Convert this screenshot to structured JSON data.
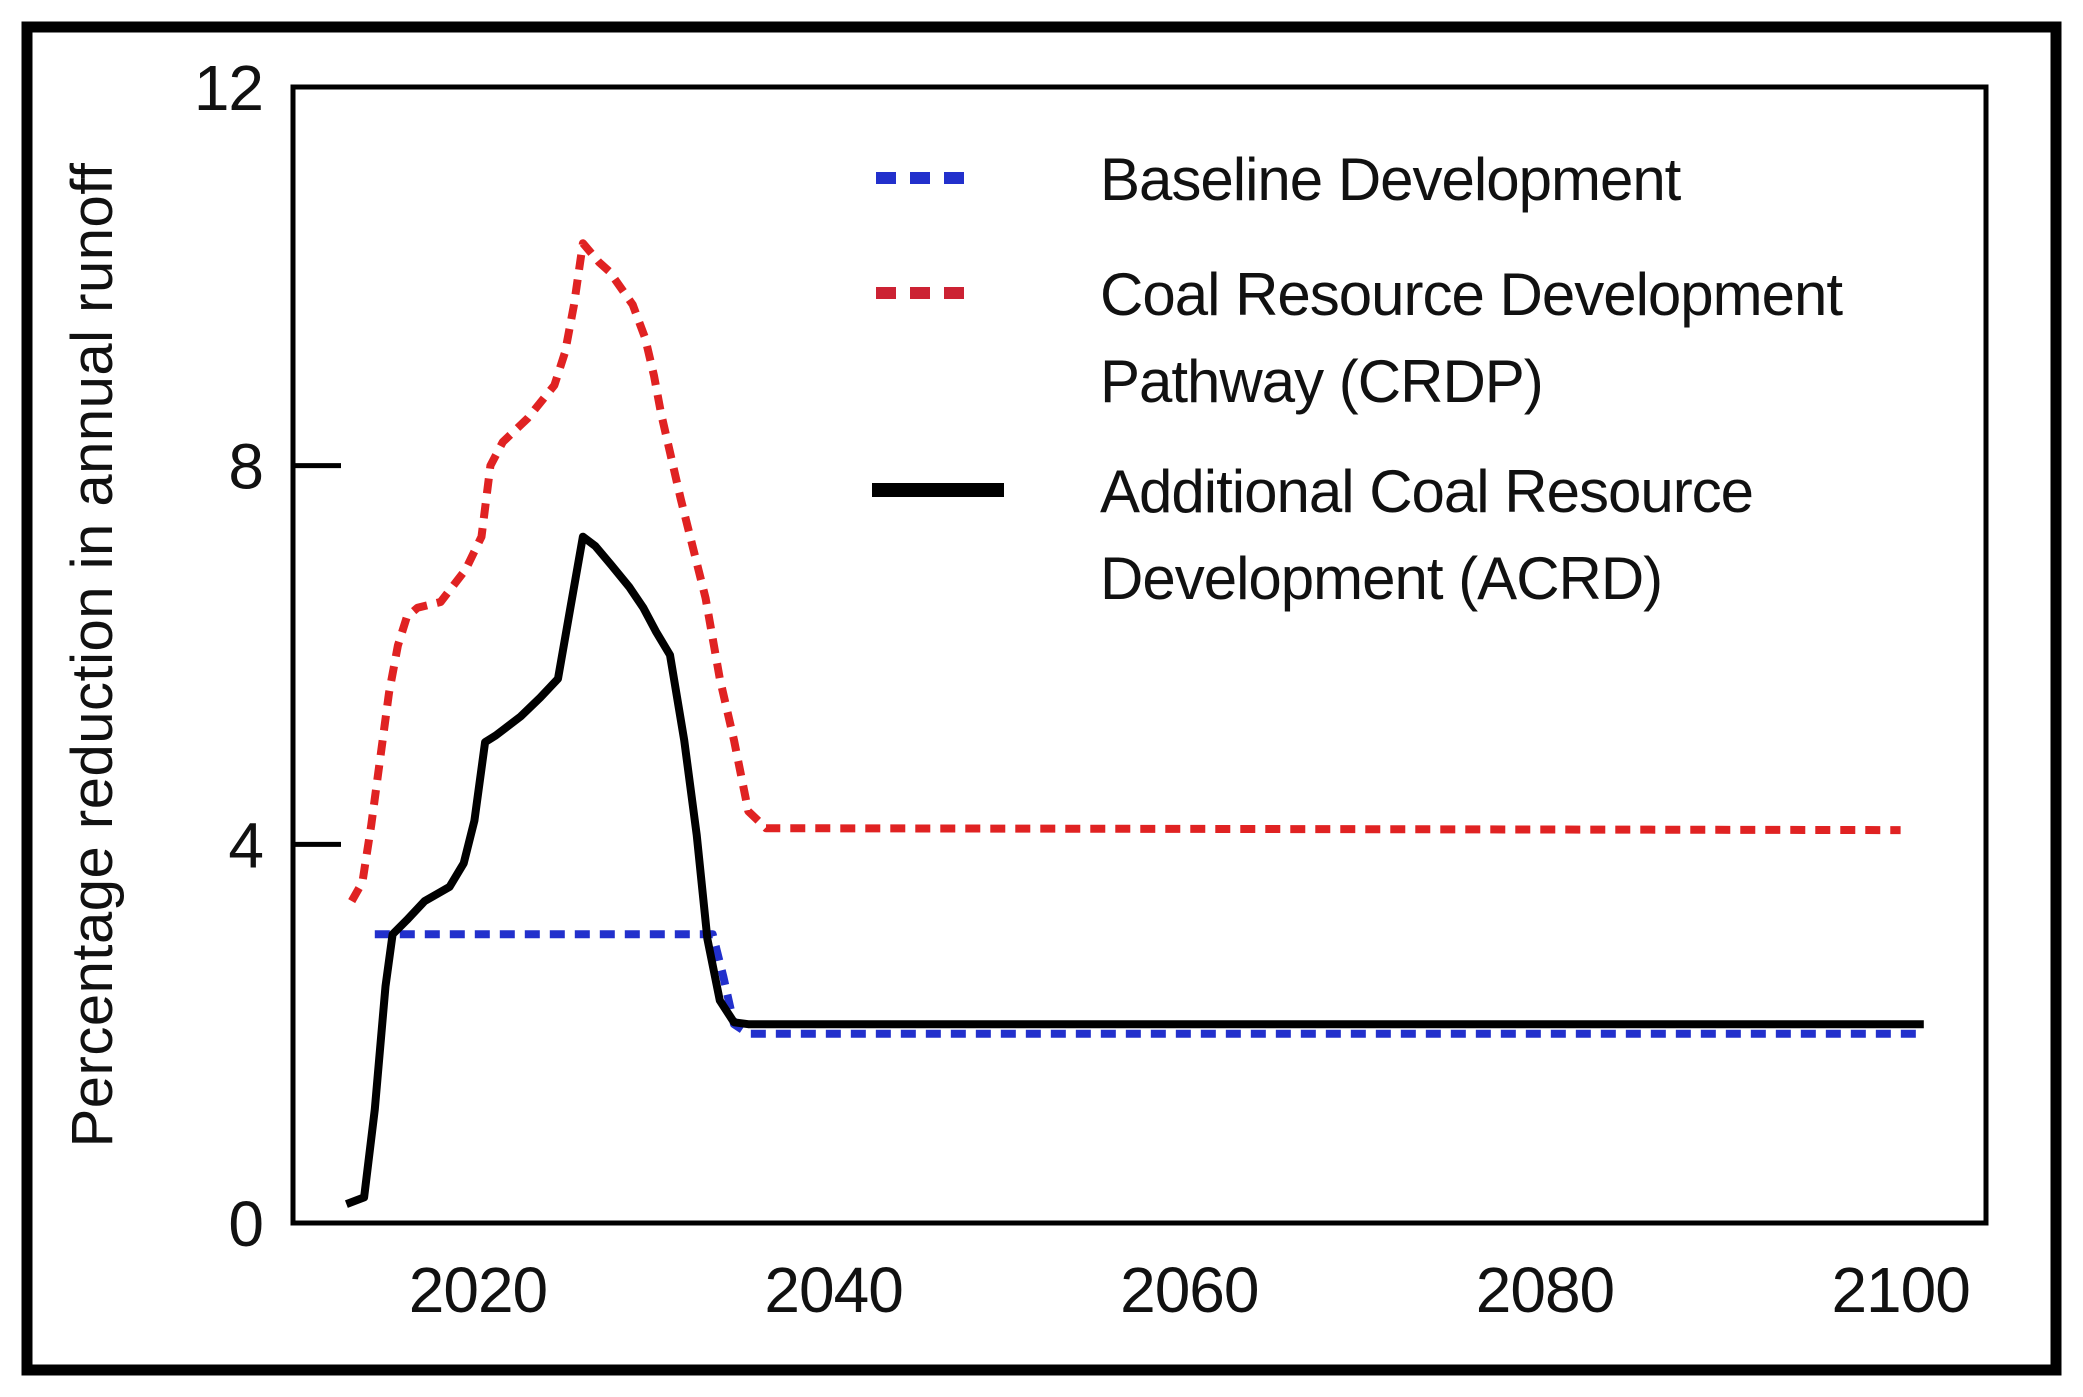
{
  "figure": {
    "background": "#ffffff",
    "border_color": "#000000",
    "axis_color": "#000000"
  },
  "chart_data": {
    "type": "line",
    "title": "",
    "xlabel": "",
    "ylabel": "Percentage reduction in annual runoff",
    "x_ticks": [
      "2020",
      "2040",
      "2060",
      "2080",
      "2100"
    ],
    "x_tick_years": [
      2020,
      2040,
      2060,
      2080,
      2100
    ],
    "y_ticks": [
      "0",
      "4",
      "8",
      "12"
    ],
    "y_tick_values": [
      0,
      4,
      8,
      12
    ],
    "xlim": [
      2009.6,
      2104.8
    ],
    "ylim": [
      0,
      12
    ],
    "grid": false,
    "legend_position": "inside-top-right",
    "series": [
      {
        "name": "Baseline Development",
        "color": "#2230cc",
        "style": "dashed",
        "points": [
          [
            2014.2,
            3.05
          ],
          [
            2033.2,
            3.05
          ],
          [
            2033.8,
            2.6
          ],
          [
            2034.4,
            2.1
          ],
          [
            2035.2,
            2.0
          ],
          [
            2101.3,
            2.0
          ]
        ]
      },
      {
        "name": "Coal Resource Development Pathway (CRDP)",
        "color": "#e02222",
        "style": "dashed",
        "points": [
          [
            2012.9,
            3.4
          ],
          [
            2013.5,
            3.6
          ],
          [
            2014.0,
            4.2
          ],
          [
            2014.5,
            4.9
          ],
          [
            2015.0,
            5.6
          ],
          [
            2015.5,
            6.1
          ],
          [
            2016.0,
            6.4
          ],
          [
            2016.6,
            6.5
          ],
          [
            2017.9,
            6.56
          ],
          [
            2019.3,
            6.9
          ],
          [
            2020.2,
            7.25
          ],
          [
            2020.7,
            8.0
          ],
          [
            2021.4,
            8.25
          ],
          [
            2022.8,
            8.5
          ],
          [
            2024.3,
            8.85
          ],
          [
            2024.9,
            9.2
          ],
          [
            2025.4,
            9.7
          ],
          [
            2025.9,
            10.35
          ],
          [
            2026.8,
            10.15
          ],
          [
            2027.4,
            10.05
          ],
          [
            2028.7,
            9.7
          ],
          [
            2029.4,
            9.35
          ],
          [
            2029.9,
            8.95
          ],
          [
            2030.3,
            8.55
          ],
          [
            2031.4,
            7.65
          ],
          [
            2032.8,
            6.6
          ],
          [
            2033.6,
            5.75
          ],
          [
            2034.4,
            5.1
          ],
          [
            2035.2,
            4.35
          ],
          [
            2036.2,
            4.17
          ],
          [
            2100.0,
            4.15
          ]
        ]
      },
      {
        "name": "Additional Coal Resource Development (ACRD)",
        "color": "#000000",
        "style": "solid",
        "points": [
          [
            2012.6,
            0.2
          ],
          [
            2013.6,
            0.27
          ],
          [
            2014.2,
            1.2
          ],
          [
            2014.8,
            2.5
          ],
          [
            2015.2,
            3.05
          ],
          [
            2016.0,
            3.2
          ],
          [
            2017.0,
            3.4
          ],
          [
            2018.4,
            3.55
          ],
          [
            2019.2,
            3.8
          ],
          [
            2019.8,
            4.25
          ],
          [
            2020.4,
            5.08
          ],
          [
            2021.0,
            5.15
          ],
          [
            2022.4,
            5.35
          ],
          [
            2023.5,
            5.55
          ],
          [
            2024.5,
            5.75
          ],
          [
            2025.2,
            6.5
          ],
          [
            2025.9,
            7.25
          ],
          [
            2026.6,
            7.15
          ],
          [
            2027.5,
            6.95
          ],
          [
            2028.5,
            6.72
          ],
          [
            2029.3,
            6.5
          ],
          [
            2030.0,
            6.25
          ],
          [
            2030.8,
            6.0
          ],
          [
            2031.6,
            5.1
          ],
          [
            2032.3,
            4.1
          ],
          [
            2032.9,
            3.0
          ],
          [
            2033.6,
            2.35
          ],
          [
            2034.4,
            2.12
          ],
          [
            2035.2,
            2.1
          ],
          [
            2101.3,
            2.1
          ]
        ]
      }
    ],
    "legend": {
      "items": [
        {
          "series": "Baseline Development",
          "label_lines": [
            "Baseline Development"
          ],
          "marker_style": "dashed",
          "marker_color": "#2230cc"
        },
        {
          "series": "Coal Resource Development Pathway (CRDP)",
          "label_lines": [
            "Coal Resource Development",
            "Pathway (CRDP)"
          ],
          "marker_style": "dashed",
          "marker_color": "#cc2233"
        },
        {
          "series": "Additional Coal Resource Development (ACRD)",
          "label_lines": [
            "Additional Coal Resource",
            "Development (ACRD)"
          ],
          "marker_style": "solid",
          "marker_color": "#000000"
        }
      ]
    }
  }
}
